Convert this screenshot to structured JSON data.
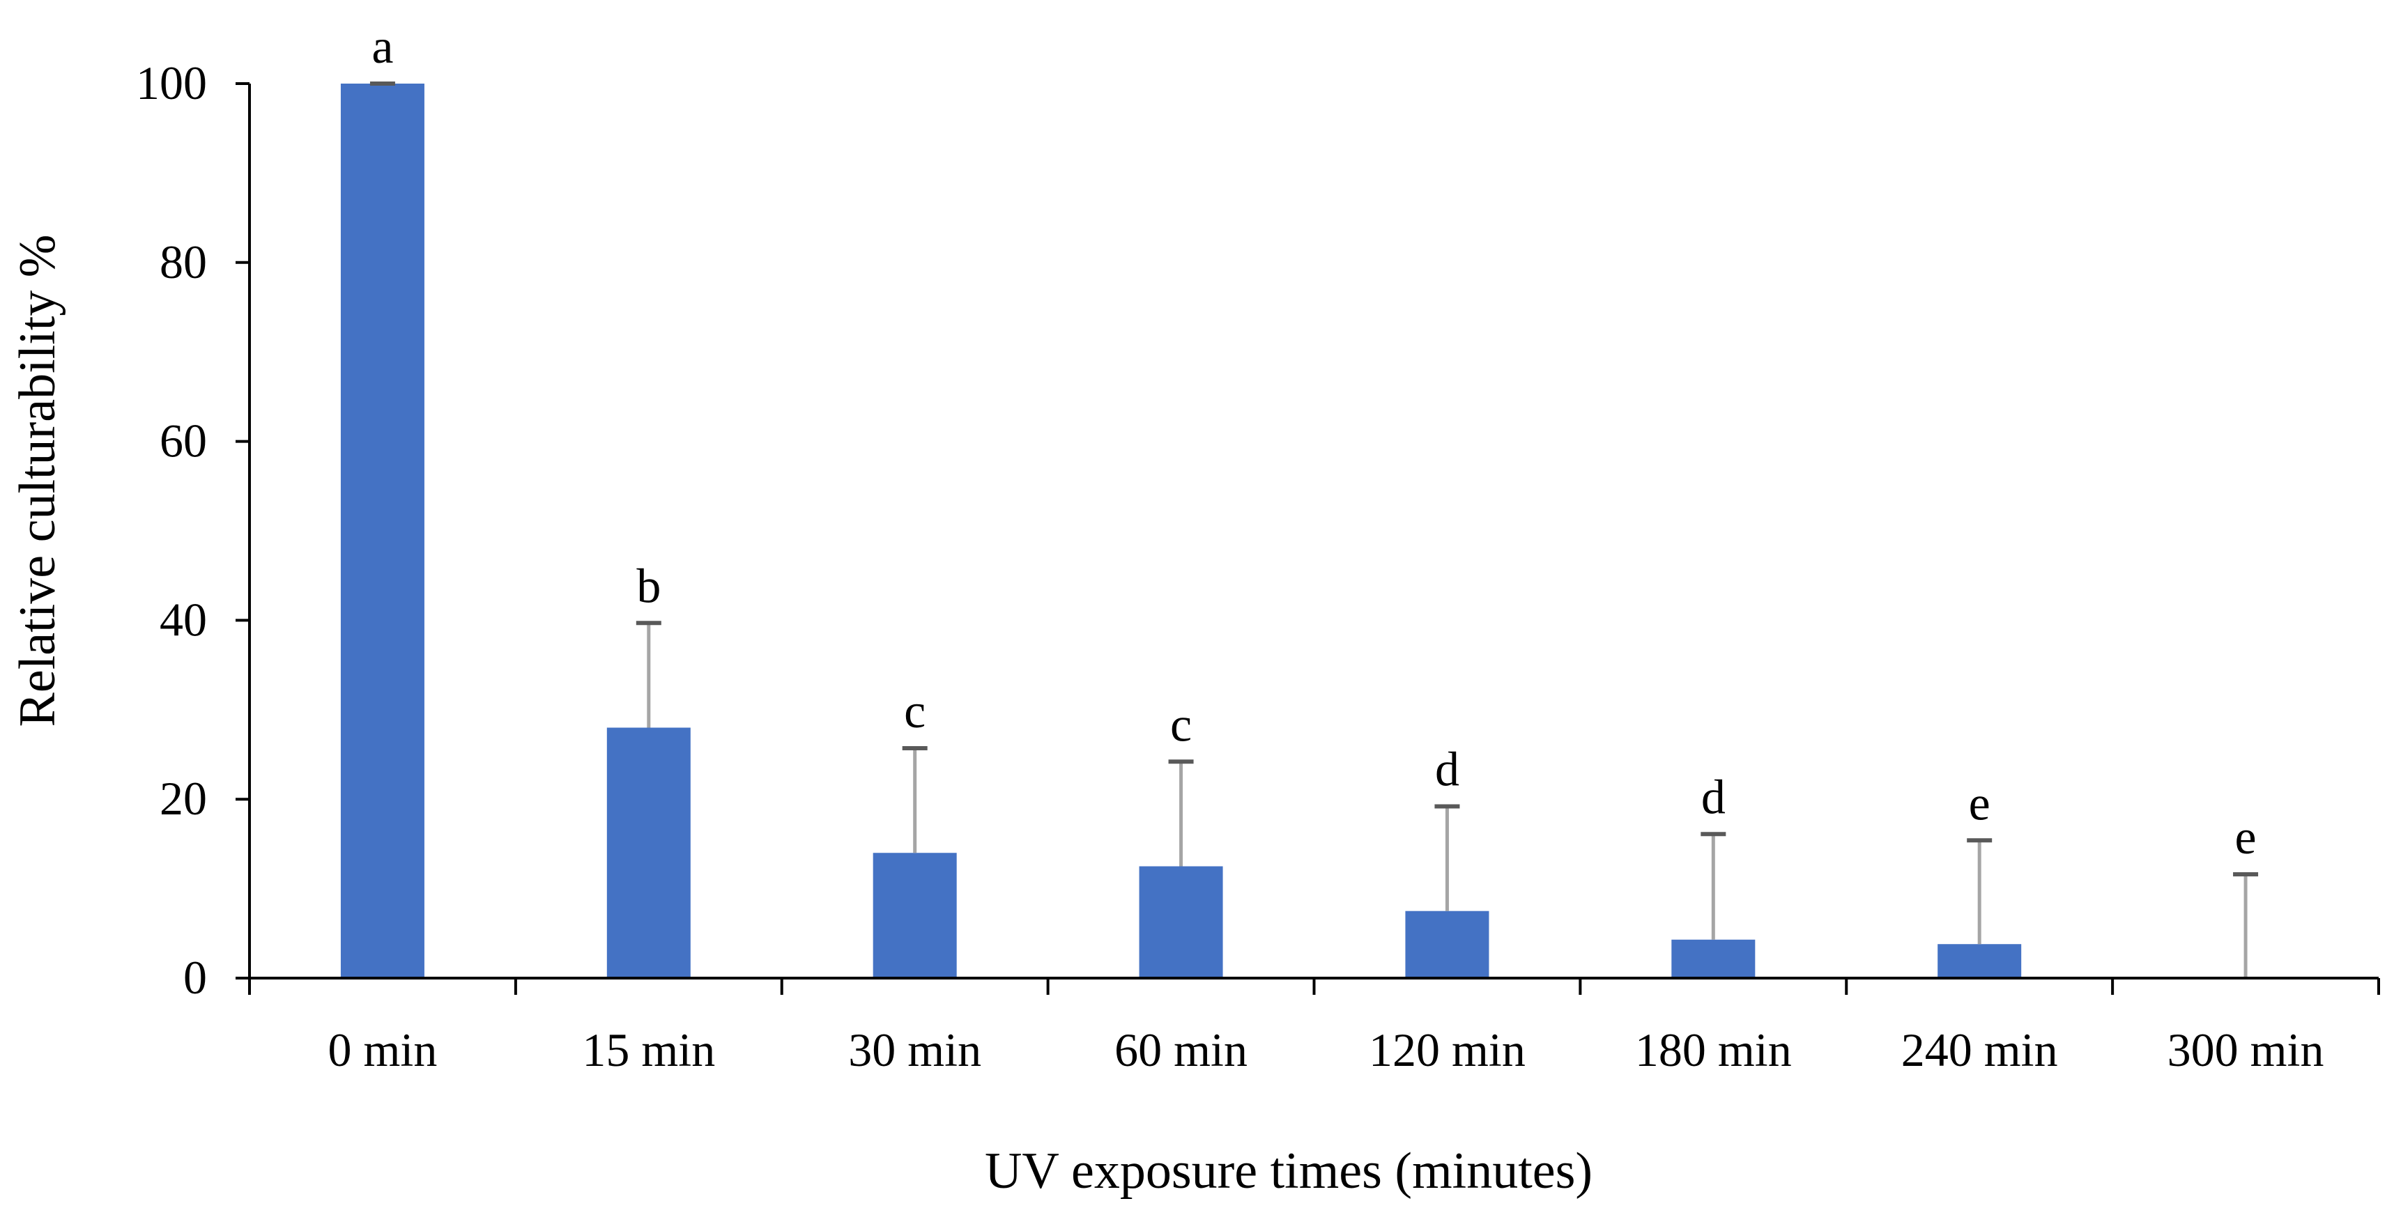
{
  "chart_data": {
    "type": "bar",
    "title": "",
    "xlabel": "UV exposure times (minutes)",
    "ylabel": "Relative culturability %",
    "ylim": [
      0,
      100
    ],
    "yticks": [
      "0",
      "20",
      "40",
      "60",
      "80",
      "100"
    ],
    "categories": [
      "0 min",
      "15 min",
      "30 min",
      "60 min",
      "120 min",
      "180 min",
      "240 min",
      "300 min"
    ],
    "values": [
      100,
      28,
      14,
      12.5,
      7.5,
      4.3,
      3.8,
      0
    ],
    "error_upper": [
      0,
      11.7,
      11.7,
      11.7,
      11.7,
      11.8,
      11.6,
      11.6
    ],
    "significance_letters": [
      "a",
      "b",
      "c",
      "c",
      "d",
      "d",
      "e",
      "e"
    ],
    "legend": "none",
    "grid": false
  },
  "colors": {
    "bar": "#4472c4",
    "error_bar": "#a5a5a5",
    "error_cap": "#595959",
    "axis": "#000000"
  }
}
